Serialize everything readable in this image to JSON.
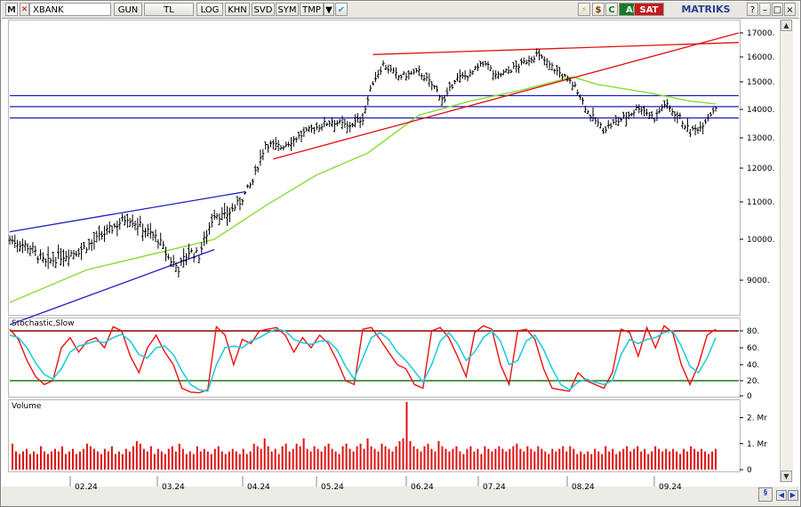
{
  "toolbar": {
    "logo": "M",
    "symbol": "XBANK",
    "items": [
      "GUN",
      "TL",
      "LOG",
      "KHN",
      "SVD",
      "SYM",
      "TMP"
    ],
    "buy": "AL",
    "sell": "SAT",
    "brand": "MATRIKS"
  },
  "colors": {
    "price_bars": "#000000",
    "moving_average": "#88dd33",
    "support_lines": "#1f1fbf",
    "resistance_lines": "#dd1111",
    "stoch_k": "#ee1111",
    "stoch_d": "#22ccdd",
    "volume_bars": "#dd1111",
    "overbought_line": "#8b0000",
    "oversold_line": "#1a7a1a"
  },
  "chart_data": [
    {
      "type": "ohlc",
      "price_axis_ticks": [
        "17000.",
        "16000.",
        "15000.",
        "14000.",
        "13000.",
        "12000.",
        "11000.",
        "10000.",
        "9000."
      ],
      "time_axis_ticks": [
        "02.24",
        "03.24",
        "04.24",
        "05.24",
        "06.24",
        "07.24",
        "08.24",
        "09.24"
      ],
      "ylim": [
        8200,
        17200
      ],
      "horizontal_levels": [
        14500,
        14100,
        13700
      ],
      "close_path": [
        [
          0,
          10000
        ],
        [
          8,
          9800
        ],
        [
          14,
          9400
        ],
        [
          20,
          9600
        ],
        [
          26,
          9700
        ],
        [
          32,
          9900
        ],
        [
          40,
          10300
        ],
        [
          46,
          10600
        ],
        [
          52,
          10300
        ],
        [
          58,
          10000
        ],
        [
          62,
          9550
        ],
        [
          66,
          9300
        ],
        [
          70,
          9700
        ],
        [
          74,
          9600
        ],
        [
          80,
          10700
        ],
        [
          84,
          10600
        ],
        [
          90,
          11000
        ],
        [
          95,
          11600
        ],
        [
          100,
          12800
        ],
        [
          106,
          12700
        ],
        [
          112,
          13000
        ],
        [
          118,
          13300
        ],
        [
          126,
          13600
        ],
        [
          132,
          13400
        ],
        [
          138,
          13700
        ],
        [
          142,
          15000
        ],
        [
          146,
          15700
        ],
        [
          152,
          15200
        ],
        [
          160,
          15400
        ],
        [
          166,
          14800
        ],
        [
          170,
          14300
        ],
        [
          174,
          15100
        ],
        [
          180,
          15300
        ],
        [
          186,
          15800
        ],
        [
          190,
          15200
        ],
        [
          196,
          15500
        ],
        [
          200,
          15700
        ],
        [
          206,
          16100
        ],
        [
          212,
          15600
        ],
        [
          218,
          15100
        ],
        [
          222,
          14700
        ],
        [
          226,
          13900
        ],
        [
          232,
          13300
        ],
        [
          236,
          13500
        ],
        [
          242,
          13800
        ],
        [
          246,
          14100
        ],
        [
          252,
          13700
        ],
        [
          256,
          14200
        ],
        [
          262,
          13700
        ],
        [
          266,
          13200
        ],
        [
          270,
          13400
        ],
        [
          276,
          14100
        ]
      ],
      "moving_average_path": [
        [
          0,
          8500
        ],
        [
          30,
          9250
        ],
        [
          60,
          9700
        ],
        [
          80,
          10000
        ],
        [
          100,
          10900
        ],
        [
          120,
          11800
        ],
        [
          140,
          12500
        ],
        [
          160,
          13800
        ],
        [
          180,
          14300
        ],
        [
          200,
          14700
        ],
        [
          220,
          15200
        ],
        [
          230,
          14900
        ],
        [
          250,
          14600
        ],
        [
          266,
          14300
        ],
        [
          276,
          14200
        ]
      ],
      "trendlines": [
        {
          "color": "support",
          "from": [
            0,
            10200
          ],
          "to": [
            92,
            11300
          ]
        },
        {
          "color": "support",
          "from": [
            0,
            8000
          ],
          "to": [
            80,
            9750
          ]
        },
        {
          "color": "resistance",
          "from": [
            103,
            12300
          ],
          "to": [
            285,
            17000
          ]
        },
        {
          "color": "resistance",
          "from": [
            142,
            16100
          ],
          "to": [
            285,
            16600
          ]
        }
      ]
    },
    {
      "type": "line",
      "title": "Stochastic,Slow",
      "yticks": [
        "80.",
        "60.",
        "40.",
        "20.",
        "0"
      ],
      "ylim": [
        0,
        100
      ],
      "levels": [
        80,
        20
      ],
      "series": [
        {
          "role": "k",
          "values": [
            82,
            70,
            45,
            25,
            15,
            20,
            60,
            72,
            55,
            68,
            72,
            60,
            85,
            80,
            50,
            30,
            60,
            75,
            55,
            40,
            10,
            5,
            4,
            8,
            85,
            75,
            40,
            70,
            65,
            80,
            82,
            84,
            75,
            55,
            72,
            60,
            75,
            65,
            45,
            20,
            15,
            82,
            84,
            70,
            55,
            40,
            35,
            15,
            10,
            80,
            84,
            72,
            50,
            25,
            78,
            86,
            82,
            40,
            15,
            80,
            82,
            70,
            35,
            10,
            8,
            6,
            30,
            20,
            15,
            10,
            30,
            82,
            78,
            50,
            84,
            60,
            86,
            78,
            40,
            15,
            40,
            75,
            82
          ]
        },
        {
          "role": "d",
          "values": [
            75,
            72,
            60,
            42,
            28,
            22,
            35,
            55,
            62,
            65,
            68,
            66,
            72,
            76,
            68,
            52,
            48,
            60,
            62,
            52,
            32,
            15,
            8,
            6,
            40,
            60,
            62,
            60,
            68,
            72,
            78,
            82,
            80,
            70,
            66,
            64,
            68,
            68,
            58,
            38,
            22,
            48,
            72,
            78,
            70,
            55,
            45,
            32,
            18,
            40,
            68,
            78,
            65,
            45,
            55,
            72,
            80,
            68,
            40,
            45,
            68,
            75,
            58,
            35,
            15,
            8,
            18,
            22,
            18,
            15,
            20,
            52,
            70,
            65,
            70,
            72,
            78,
            80,
            62,
            38,
            30,
            48,
            72
          ]
        }
      ]
    },
    {
      "type": "bar",
      "title": "Volume",
      "yticks": [
        "2. Mr",
        "1. Mr",
        "0"
      ],
      "ylim": [
        0,
        2.6
      ],
      "values": [
        1.0,
        0.7,
        0.6,
        0.7,
        0.8,
        0.6,
        0.7,
        0.6,
        0.9,
        0.7,
        0.6,
        0.7,
        0.8,
        0.7,
        0.9,
        0.6,
        0.7,
        0.8,
        0.6,
        0.7,
        0.8,
        1.0,
        0.9,
        0.8,
        0.7,
        0.6,
        0.8,
        0.7,
        0.9,
        0.6,
        0.7,
        0.6,
        0.8,
        0.7,
        0.9,
        1.1,
        1.0,
        0.8,
        0.7,
        0.9,
        0.6,
        0.8,
        0.7,
        0.6,
        0.8,
        0.9,
        0.7,
        1.0,
        0.8,
        0.6,
        0.7,
        0.6,
        0.9,
        0.7,
        0.8,
        0.7,
        0.6,
        0.8,
        0.9,
        0.7,
        0.6,
        0.7,
        0.8,
        0.7,
        0.6,
        0.8,
        0.6,
        0.7,
        1.0,
        0.9,
        0.8,
        1.2,
        0.9,
        0.7,
        0.8,
        0.6,
        0.9,
        1.0,
        0.7,
        0.8,
        1.0,
        0.9,
        1.2,
        0.8,
        0.7,
        0.9,
        0.8,
        0.7,
        0.9,
        1.0,
        0.8,
        0.7,
        0.6,
        0.9,
        1.0,
        0.8,
        0.7,
        0.9,
        1.0,
        0.8,
        1.2,
        0.9,
        0.8,
        0.7,
        1.0,
        0.9,
        0.8,
        0.7,
        0.9,
        1.1,
        1.2,
        2.6,
        1.1,
        0.9,
        0.8,
        0.7,
        0.9,
        1.0,
        0.8,
        0.7,
        1.1,
        0.9,
        0.8,
        0.7,
        0.8,
        0.9,
        0.7,
        0.6,
        0.8,
        0.9,
        0.7,
        0.8,
        0.6,
        0.9,
        0.8,
        0.7,
        0.8,
        0.9,
        0.8,
        0.7,
        0.8,
        0.9,
        1.0,
        0.8,
        0.7,
        0.9,
        0.8,
        0.7,
        0.9,
        0.8,
        0.7,
        0.6,
        0.8,
        0.7,
        0.8,
        0.9,
        0.7,
        0.9,
        0.8,
        0.6,
        0.7,
        0.6,
        0.7,
        0.6,
        0.8,
        0.7,
        0.6,
        0.9,
        0.7,
        0.8,
        0.6,
        0.7,
        0.8,
        0.9,
        0.7,
        0.8,
        0.9,
        0.7,
        0.8,
        0.6,
        0.7,
        0.9,
        0.8,
        0.7,
        0.8,
        0.7,
        0.8,
        0.7,
        0.6,
        0.8,
        0.7,
        0.9,
        0.8,
        0.7,
        0.8,
        0.7,
        0.6,
        0.7,
        0.8
      ]
    }
  ]
}
